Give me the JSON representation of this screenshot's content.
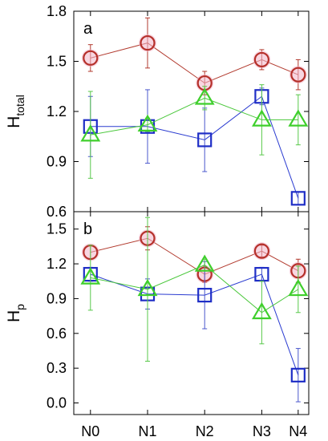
{
  "chart_data": [
    {
      "type": "line",
      "panel_label": "a",
      "ylabel": "H",
      "ylabel_sub": "total",
      "ylim": [
        0.6,
        1.8
      ],
      "yticks": [
        0.6,
        0.9,
        1.2,
        1.5,
        1.8
      ],
      "ytick_labels": [
        "0.6",
        "0.9",
        "1.2",
        "1.5",
        "1.8"
      ],
      "categories": [
        "N0",
        "N1",
        "N2",
        "N3",
        "N4"
      ],
      "series": [
        {
          "marker": "circle",
          "color": "#b5302a",
          "values": [
            1.52,
            1.61,
            1.37,
            1.51,
            1.42
          ],
          "errors": [
            0.08,
            0.15,
            0.07,
            0.06,
            0.09
          ]
        },
        {
          "marker": "square",
          "color": "#1f2ec6",
          "values": [
            1.11,
            1.11,
            1.03,
            1.29,
            0.68
          ],
          "errors": [
            0.18,
            0.22,
            0.19,
            0.05,
            0.04
          ]
        },
        {
          "marker": "triangle",
          "color": "#3fcf2c",
          "values": [
            1.06,
            1.12,
            1.28,
            1.15,
            1.15
          ],
          "errors": [
            0.26,
            0.04,
            0.07,
            0.21,
            0.15
          ]
        }
      ]
    },
    {
      "type": "line",
      "panel_label": "b",
      "ylabel": "H",
      "ylabel_sub": "p",
      "ylim": [
        -0.1,
        1.65
      ],
      "yticks": [
        0.0,
        0.3,
        0.6,
        0.9,
        1.2,
        1.5
      ],
      "ytick_labels": [
        "0.0",
        "0.3",
        "0.6",
        "0.9",
        "1.2",
        "1.5"
      ],
      "categories": [
        "N0",
        "N1",
        "N2",
        "N3",
        "N4"
      ],
      "series": [
        {
          "marker": "circle",
          "color": "#b5302a",
          "values": [
            1.3,
            1.42,
            1.11,
            1.31,
            1.14
          ],
          "errors": [
            0.06,
            0.1,
            0.07,
            0.05,
            0.1
          ]
        },
        {
          "marker": "square",
          "color": "#1f2ec6",
          "values": [
            1.11,
            0.94,
            0.93,
            1.11,
            0.24
          ],
          "errors": [
            0.06,
            0.13,
            0.29,
            0.06,
            0.23
          ]
        },
        {
          "marker": "triangle",
          "color": "#3fcf2c",
          "values": [
            1.08,
            0.98,
            1.19,
            0.78,
            0.98
          ],
          "errors": [
            0.28,
            0.62,
            0.05,
            0.27,
            0.2
          ]
        }
      ]
    }
  ]
}
